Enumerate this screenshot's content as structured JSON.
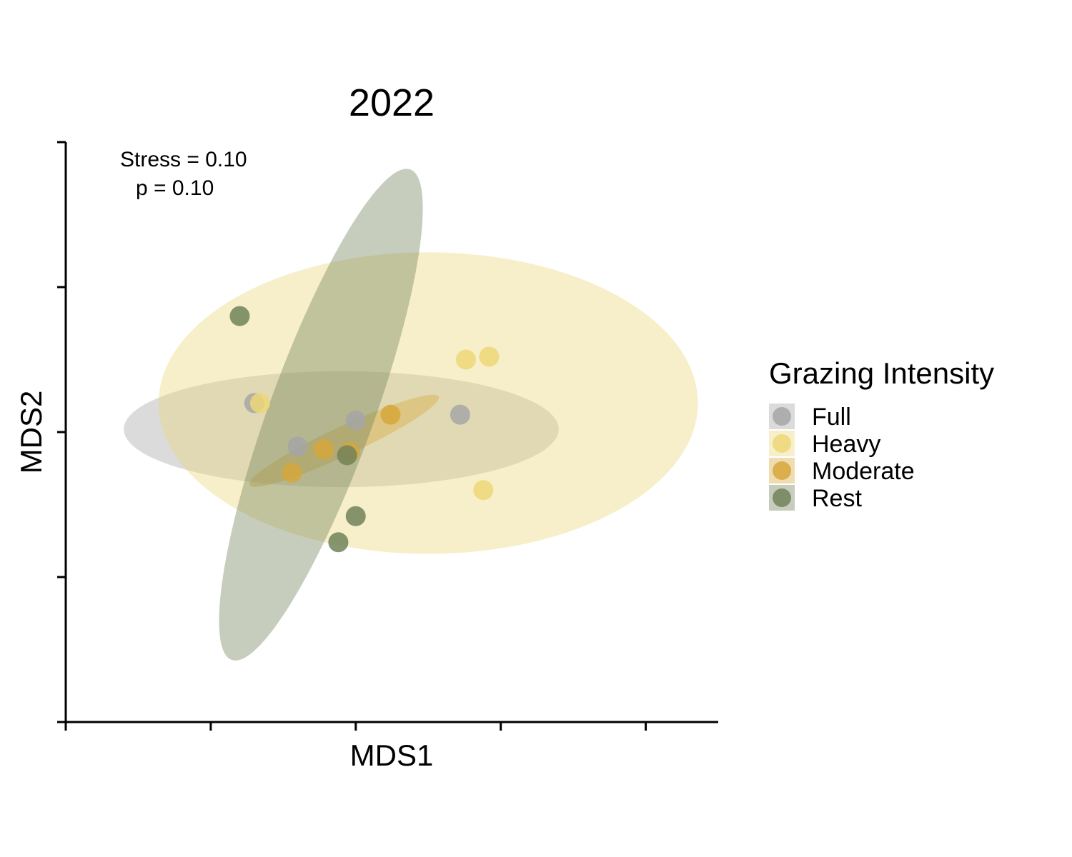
{
  "chart_data": {
    "type": "scatter",
    "title": "2022",
    "xlabel": "MDS1",
    "ylabel": "MDS2",
    "annotations": [
      "Stress = 0.10",
      "p = 0.10"
    ],
    "xlim": [
      -1.0,
      1.25
    ],
    "ylim": [
      -1.0,
      1.0
    ],
    "tick_labels_shown": false,
    "grid": false,
    "legend": {
      "title": "Grazing Intensity",
      "position": "right"
    },
    "series": [
      {
        "name": "Full",
        "color": "#a6a6a6",
        "points": [
          [
            -0.35,
            0.1
          ],
          [
            -0.2,
            -0.05
          ],
          [
            0.0,
            0.04
          ],
          [
            0.36,
            0.06
          ]
        ],
        "ellipse": {
          "cx": -0.05,
          "cy": 0.01,
          "rx": 0.75,
          "ry": 0.2,
          "angle_deg": 0
        }
      },
      {
        "name": "Heavy",
        "color": "#ecd778",
        "points": [
          [
            -0.33,
            0.1
          ],
          [
            0.38,
            0.25
          ],
          [
            0.46,
            0.26
          ],
          [
            0.44,
            -0.2
          ]
        ],
        "ellipse": {
          "cx": 0.25,
          "cy": 0.1,
          "rx": 0.93,
          "ry": 0.52,
          "angle_deg": 0
        }
      },
      {
        "name": "Moderate",
        "color": "#d6a73b",
        "points": [
          [
            -0.11,
            -0.06
          ],
          [
            -0.22,
            -0.14
          ],
          [
            0.12,
            0.06
          ],
          [
            -0.02,
            -0.07
          ]
        ],
        "ellipse": {
          "cx": -0.04,
          "cy": -0.03,
          "rx": 0.36,
          "ry": 0.05,
          "angle_deg": -25
        }
      },
      {
        "name": "Rest",
        "color": "#718259",
        "points": [
          [
            -0.4,
            0.4
          ],
          [
            0.0,
            -0.29
          ],
          [
            -0.06,
            -0.38
          ],
          [
            -0.03,
            -0.08
          ]
        ],
        "ellipse": {
          "cx": -0.12,
          "cy": 0.06,
          "rx": 0.18,
          "ry": 0.9,
          "angle_deg": 20
        }
      }
    ]
  }
}
